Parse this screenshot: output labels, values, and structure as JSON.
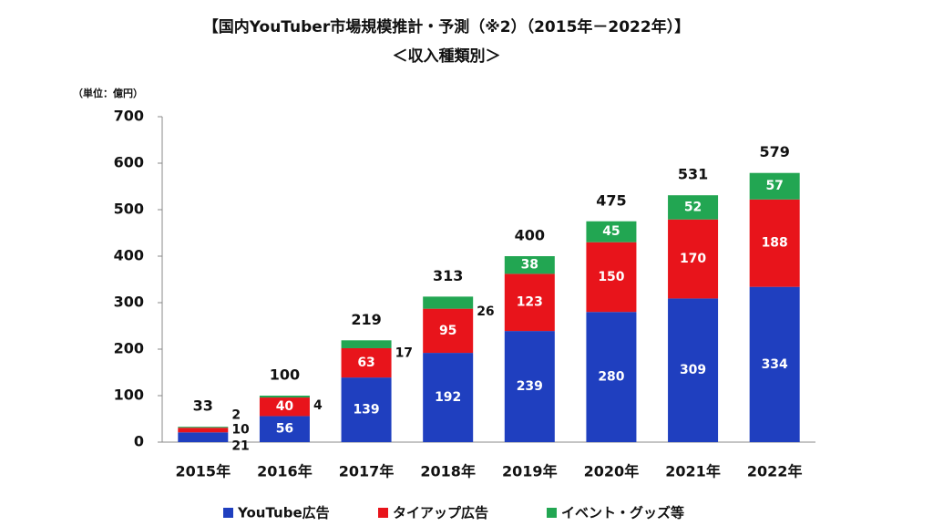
{
  "chart_data": {
    "type": "stacked-bar",
    "title": "【国内YouTuber市場規模推計・予測（※2）（2015年－2022年）】",
    "subtitle": "＜収入種類別＞",
    "y_label": "（単位：億円）",
    "categories": [
      "2015年",
      "2016年",
      "2017年",
      "2018年",
      "2019年",
      "2020年",
      "2021年",
      "2022年"
    ],
    "series": [
      {
        "name": "YouTube広告",
        "color": "#1f3fbf",
        "values": [
          21,
          56,
          139,
          192,
          239,
          280,
          309,
          334
        ]
      },
      {
        "name": "タイアップ広告",
        "color": "#e8141b",
        "values": [
          10,
          40,
          63,
          95,
          123,
          150,
          170,
          188
        ]
      },
      {
        "name": "イベント・グッズ等",
        "color": "#22a652",
        "values": [
          2,
          4,
          17,
          26,
          38,
          45,
          52,
          57
        ]
      }
    ],
    "totals": [
      33,
      100,
      219,
      313,
      400,
      475,
      531,
      579
    ],
    "ylim": [
      0,
      700
    ],
    "yticks": [
      0,
      100,
      200,
      300,
      400,
      500,
      600,
      700
    ]
  }
}
